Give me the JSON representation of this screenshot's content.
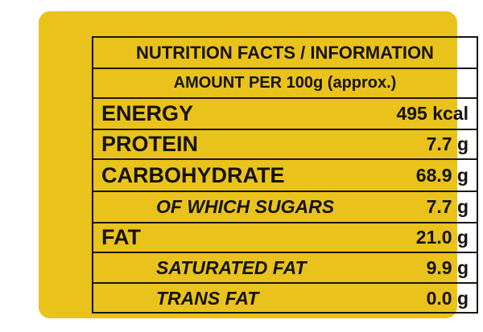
{
  "header": {
    "title": "NUTRITION FACTS / INFORMATION",
    "amount": "AMOUNT PER 100g (approx.)"
  },
  "rows": [
    {
      "label": "ENERGY",
      "value": "495 kcal",
      "type": "main"
    },
    {
      "label": "PROTEIN",
      "value": "7.7 g",
      "type": "main"
    },
    {
      "label": "CARBOHYDRATE",
      "value": "68.9 g",
      "type": "main"
    },
    {
      "label": "OF WHICH SUGARS",
      "value": "7.7 g",
      "type": "sub"
    },
    {
      "label": "FAT",
      "value": "21.0 g",
      "type": "main"
    },
    {
      "label": "SATURATED FAT",
      "value": "9.9 g",
      "type": "sub"
    },
    {
      "label": "TRANS FAT",
      "value": "0.0 g",
      "type": "sub"
    }
  ],
  "colors": {
    "background": "#e9c31c",
    "ink": "#16130a"
  }
}
